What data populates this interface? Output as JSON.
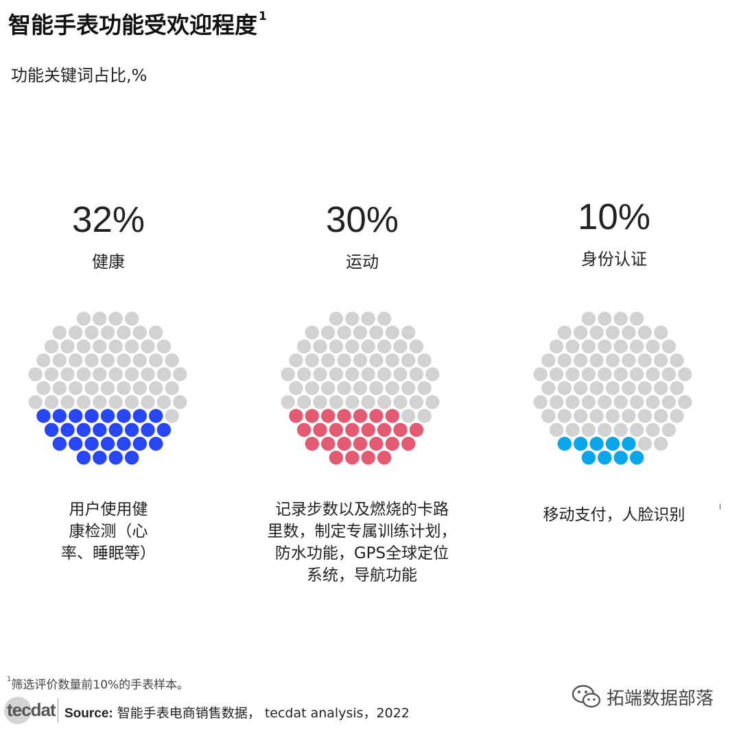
{
  "header": {
    "title": "智能手表功能受欢迎程度",
    "title_sup": "1",
    "subtitle": "功能关键词占比,%"
  },
  "chart_data": [
    {
      "type": "dot-proportion",
      "category": "健康",
      "value": 32,
      "value_label": "32%",
      "description": "用户使用健\n康检测（心\n率、睡眠等）",
      "color": "#2746f5",
      "base_color": "#d2d2d2"
    },
    {
      "type": "dot-proportion",
      "category": "运动",
      "value": 30,
      "value_label": "30%",
      "description": "记录步数以及燃烧的卡路\n里数，制定专属训练计划，\n防水功能，GPS全球定位\n系统，导航功能",
      "color": "#e45a72",
      "base_color": "#d2d2d2"
    },
    {
      "type": "dot-proportion",
      "category": "身份认证",
      "value": 10,
      "value_label": "10%",
      "description": "移动支付，人脸识别",
      "color": "#0aa6ec",
      "base_color": "#d2d2d2"
    }
  ],
  "footer": {
    "footnote_sup": "1",
    "footnote": "筛选评价数量前10%的手表样本。",
    "logo": "tecdat",
    "source_label": "Source:",
    "source_text": " 智能手表电商销售数据， tecdat analysis，2022",
    "watermark": "拓端数据部落",
    "watermark_icon": "wechat-icon"
  }
}
